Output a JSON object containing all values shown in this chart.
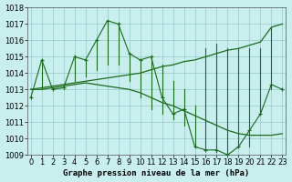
{
  "title": "Graphe pression niveau de la mer (hPa)",
  "bg_color": "#c8eeee",
  "line_color": "#1a6b1a",
  "grid_color": "#9ecece",
  "ylim": [
    1009,
    1018
  ],
  "xlim": [
    -0.3,
    23.3
  ],
  "yticks": [
    1009,
    1010,
    1011,
    1012,
    1013,
    1014,
    1015,
    1016,
    1017,
    1018
  ],
  "xticks": [
    0,
    1,
    2,
    3,
    4,
    5,
    6,
    7,
    8,
    9,
    10,
    11,
    12,
    13,
    14,
    15,
    16,
    17,
    18,
    19,
    20,
    21,
    22,
    23
  ],
  "main_y": [
    1012.5,
    1014.8,
    1013.0,
    1013.1,
    1015.0,
    1014.8,
    1016.0,
    1017.2,
    1017.0,
    1015.2,
    1014.8,
    1015.0,
    1012.5,
    1011.5,
    1011.8,
    1009.5,
    1009.3,
    1009.3,
    1009.0,
    1009.5,
    1010.5,
    1011.5,
    1013.3,
    1013.0
  ],
  "upper_y": [
    1013.0,
    1013.1,
    1013.2,
    1013.3,
    1013.4,
    1013.5,
    1013.6,
    1013.7,
    1013.8,
    1013.9,
    1014.0,
    1014.2,
    1014.4,
    1014.5,
    1014.7,
    1014.8,
    1015.0,
    1015.2,
    1015.4,
    1015.5,
    1015.7,
    1015.9,
    1016.8,
    1017.0
  ],
  "lower_y": [
    1013.0,
    1013.0,
    1013.1,
    1013.2,
    1013.3,
    1013.4,
    1013.3,
    1013.2,
    1013.1,
    1013.0,
    1012.8,
    1012.5,
    1012.2,
    1012.0,
    1011.7,
    1011.4,
    1011.1,
    1010.8,
    1010.5,
    1010.3,
    1010.2,
    1010.2,
    1010.2,
    1010.3
  ],
  "bar_min": [
    1012.5,
    1013.0,
    1013.0,
    1013.0,
    1013.5,
    1013.8,
    1014.2,
    1014.5,
    1014.5,
    1013.5,
    1012.5,
    1011.8,
    1011.5,
    1011.2,
    1010.8,
    1009.5,
    1009.3,
    1009.2,
    1009.0,
    1009.5,
    1009.5,
    1011.5,
    1013.0,
    1013.0
  ],
  "bar_max": [
    1012.5,
    1014.8,
    1013.0,
    1013.2,
    1015.0,
    1014.8,
    1016.0,
    1017.2,
    1017.0,
    1015.2,
    1014.8,
    1015.0,
    1014.5,
    1013.5,
    1013.0,
    1012.0,
    1015.5,
    1015.8,
    1015.5,
    1015.5,
    1015.5,
    1015.5,
    1016.8,
    1013.0
  ]
}
